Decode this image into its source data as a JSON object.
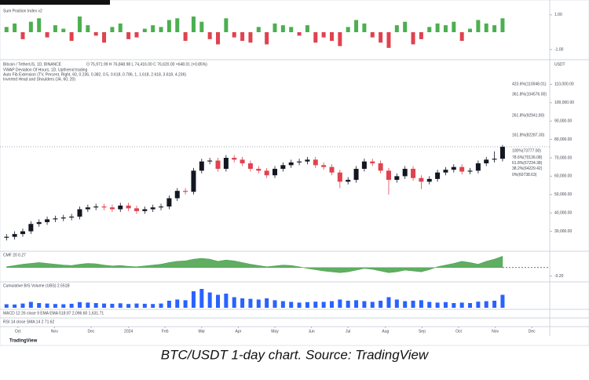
{
  "chart_data": [
    {
      "type": "candlestick",
      "title": "Bitcoin / TetherUS, 1D, BINANCE",
      "subtitle": "O 75,971.99 H 76,848.98 L 74,416.00 C 76,620.00 +648.01 (+0.85%)",
      "annotations": [
        "VWAP Deviation Of Hours, 1D, Upthrend trading",
        "Auto Fib Extension (TV, Percent, Right, 60, 0.236, 0.382, 0.5, 0.618, 0.786, 1, 1.618, 2.618, 3.618, 4.236)",
        "Inverted Head and Shoulders (34, 60, 20)"
      ],
      "currency": "USDT",
      "up_color": "#131722",
      "down_color": "#e0424f",
      "xlim": [
        -0.8,
        66.8
      ],
      "xticks": [
        {
          "value": 1.4,
          "label": "Oct"
        },
        {
          "value": 5.9,
          "label": "Nov"
        },
        {
          "value": 10.4,
          "label": "Dec"
        },
        {
          "value": 15,
          "label": "2024"
        },
        {
          "value": 19.5,
          "label": "Feb"
        },
        {
          "value": 24,
          "label": "Mar"
        },
        {
          "value": 28.5,
          "label": "Apr"
        },
        {
          "value": 33,
          "label": "May"
        },
        {
          "value": 37.5,
          "label": "Jun"
        },
        {
          "value": 42,
          "label": "Jul"
        },
        {
          "value": 46.6,
          "label": "Aug"
        },
        {
          "value": 51.1,
          "label": "Sep"
        },
        {
          "value": 55.6,
          "label": "Oct"
        },
        {
          "value": 60.1,
          "label": "Nov"
        },
        {
          "value": 64.6,
          "label": "Dec"
        }
      ],
      "ylim": [
        20000,
        120000
      ],
      "yticks": [
        {
          "value": 30000,
          "label": "30,000.00"
        },
        {
          "value": 40000,
          "label": "40,000.00"
        },
        {
          "value": 50000,
          "label": "50,000.00"
        },
        {
          "value": 60000,
          "label": "60,000.00"
        },
        {
          "value": 70000,
          "label": "70,000.00"
        },
        {
          "value": 80000,
          "label": "80,000.00"
        },
        {
          "value": 90000,
          "label": "90,000.00"
        },
        {
          "value": 100000,
          "label": "100,000.00"
        },
        {
          "value": 110000,
          "label": "110,000.00"
        }
      ],
      "levels": [
        {
          "value": 110048.01,
          "label": "423.6%(110048.01)",
          "color": "#e91e63"
        },
        {
          "value": 104576,
          "label": "361.8%(104576.00)",
          "color": "#7b1fa2"
        },
        {
          "value": 92941.8,
          "label": "261.8%(92941.80)",
          "color": "#f44336"
        },
        {
          "value": 82287.3,
          "label": "161.8%(82287.30)",
          "color": "#2962ff"
        },
        {
          "value": 73777,
          "label": "100%(73777.00)",
          "color": "#787b86"
        },
        {
          "value": 70136.08,
          "label": "78.6%(70136.08)",
          "color": "#4caf50"
        },
        {
          "value": 67234.38,
          "label": "61.8%(67234.38)",
          "color": "#009688"
        },
        {
          "value": 64229.42,
          "label": "38.2%(64229.42)",
          "color": "#ff9800"
        },
        {
          "value": 60738.63,
          "label": "0%(60738.63)",
          "color": "#787b86"
        }
      ],
      "open": [
        26500,
        27000,
        28500,
        30000,
        34000,
        35000,
        36500,
        37000,
        37500,
        38000,
        42000,
        43000,
        43500,
        43000,
        42000,
        44000,
        42500,
        41000,
        42000,
        43000,
        43500,
        48000,
        52000,
        51500,
        63000,
        68000,
        68500,
        64000,
        70000,
        69000,
        67000,
        64000,
        63000,
        60500,
        64000,
        66000,
        67500,
        68000,
        69000,
        66000,
        65000,
        62000,
        57000,
        58000,
        64000,
        68000,
        67000,
        63000,
        58000,
        60000,
        64000,
        59000,
        57000,
        58500,
        62000,
        63500,
        65000,
        62500,
        63000,
        67000,
        69000,
        69500
      ],
      "high": [
        28500,
        30000,
        31500,
        35500,
        36500,
        38000,
        38500,
        39000,
        39500,
        43500,
        44500,
        45000,
        45000,
        44500,
        45500,
        45500,
        44000,
        43500,
        44500,
        45000,
        49500,
        53500,
        53500,
        64500,
        69500,
        70000,
        70000,
        71500,
        71500,
        70500,
        68500,
        65500,
        64500,
        65500,
        67500,
        69000,
        69500,
        70500,
        70500,
        67500,
        66500,
        63500,
        59500,
        65500,
        69500,
        69500,
        68500,
        64500,
        61500,
        65500,
        65500,
        60500,
        60000,
        63500,
        65000,
        66500,
        66500,
        64500,
        68500,
        70500,
        73500,
        77000
      ],
      "low": [
        25000,
        25500,
        27000,
        28500,
        32500,
        33500,
        35000,
        35500,
        36000,
        36500,
        40500,
        41500,
        41500,
        40500,
        40500,
        41000,
        39500,
        39500,
        40500,
        41500,
        42000,
        46500,
        50000,
        50000,
        61500,
        66500,
        62500,
        62500,
        67500,
        65500,
        62500,
        61500,
        59000,
        59000,
        62500,
        64500,
        66000,
        66500,
        64500,
        63500,
        60500,
        53500,
        55500,
        56500,
        62500,
        65500,
        61500,
        50000,
        56500,
        58500,
        57500,
        53000,
        55500,
        57000,
        60500,
        62000,
        61000,
        61000,
        61500,
        65500,
        67500,
        68000
      ],
      "close": [
        27000,
        28500,
        30000,
        34000,
        35000,
        36500,
        37000,
        37500,
        38000,
        42000,
        43000,
        43500,
        43000,
        42000,
        44000,
        42500,
        41000,
        42000,
        43000,
        43500,
        48000,
        52000,
        51500,
        63000,
        68000,
        68500,
        64000,
        70000,
        69000,
        67000,
        64000,
        63000,
        60500,
        64000,
        66000,
        67500,
        68000,
        69000,
        66000,
        65000,
        62000,
        57000,
        58000,
        64000,
        68000,
        67000,
        63000,
        58000,
        60000,
        64000,
        59000,
        57000,
        58500,
        62000,
        63500,
        65000,
        62500,
        63000,
        67000,
        69000,
        69500,
        76000
      ]
    },
    {
      "type": "bar",
      "title": "Sum Position Index v2",
      "positive_color": "#4caf50",
      "negative_color": "#e0424f",
      "ylim": [
        -1.4,
        1.4
      ],
      "yticks": [
        {
          "value": 1,
          "label": "1.00"
        },
        {
          "value": -1,
          "label": "-1.00"
        }
      ],
      "values": [
        0.3,
        0.5,
        -0.4,
        0.6,
        0.8,
        -0.3,
        0.4,
        0.2,
        -0.5,
        0.9,
        0.4,
        -0.2,
        -0.6,
        0.3,
        0.5,
        -0.4,
        -0.3,
        0.2,
        0.4,
        0.3,
        0.7,
        0.8,
        -0.5,
        0.9,
        0.6,
        -0.4,
        -0.7,
        0.8,
        -0.3,
        -0.5,
        -0.6,
        0.3,
        -0.7,
        0.5,
        0.4,
        0.3,
        -0.2,
        0.4,
        -0.6,
        -0.3,
        -0.5,
        -0.8,
        0.3,
        0.7,
        0.5,
        -0.3,
        -0.6,
        -0.9,
        0.4,
        0.6,
        -0.7,
        -0.4,
        0.3,
        0.5,
        0.4,
        0.6,
        -0.5,
        0.2,
        0.7,
        0.5,
        0.4,
        0.8
      ]
    },
    {
      "type": "area",
      "title": "CMF 20 0.27",
      "color": "#43a047",
      "ylim": [
        -0.3,
        0.35
      ],
      "yticks": [
        {
          "value": -0.2,
          "label": "-0.20"
        }
      ],
      "values": [
        0.02,
        0.05,
        0.08,
        0.1,
        0.12,
        0.1,
        0.08,
        0.06,
        0.05,
        0.08,
        0.1,
        0.09,
        0.06,
        0.04,
        0.05,
        0.03,
        0.02,
        0.04,
        0.06,
        0.08,
        0.12,
        0.15,
        0.16,
        0.2,
        0.22,
        0.2,
        0.15,
        0.18,
        0.16,
        0.12,
        0.08,
        0.05,
        0.02,
        0.04,
        0.06,
        0.05,
        0.02,
        -0.02,
        -0.05,
        -0.08,
        -0.1,
        -0.12,
        -0.1,
        -0.06,
        -0.02,
        -0.04,
        -0.08,
        -0.12,
        -0.1,
        -0.06,
        -0.08,
        -0.1,
        -0.05,
        0.02,
        0.06,
        0.1,
        0.15,
        0.12,
        0.08,
        0.15,
        0.2,
        0.27
      ]
    },
    {
      "type": "bar",
      "title": "Cumulative B/S Volume (UBS) 2.551B",
      "color": "#2962ff",
      "ylim": [
        0,
        100
      ],
      "yticks": [],
      "values": [
        15,
        14,
        18,
        25,
        20,
        18,
        16,
        15,
        17,
        24,
        22,
        20,
        18,
        17,
        19,
        16,
        18,
        17,
        16,
        18,
        30,
        35,
        32,
        70,
        80,
        65,
        55,
        60,
        45,
        40,
        38,
        35,
        40,
        32,
        28,
        25,
        22,
        24,
        26,
        25,
        28,
        35,
        30,
        32,
        28,
        25,
        30,
        45,
        35,
        28,
        30,
        32,
        25,
        22,
        24,
        20,
        22,
        20,
        26,
        28,
        30,
        55
      ]
    }
  ],
  "indicators": [
    "MACD 12 26 close 9 EMA EMA  518.97  2,096.60  1,631.71",
    "RSI 14 close SMA 14 2  71.62"
  ],
  "brand": "TradingView",
  "caption": "BTC/USDT 1-day chart. Source: TradingView"
}
